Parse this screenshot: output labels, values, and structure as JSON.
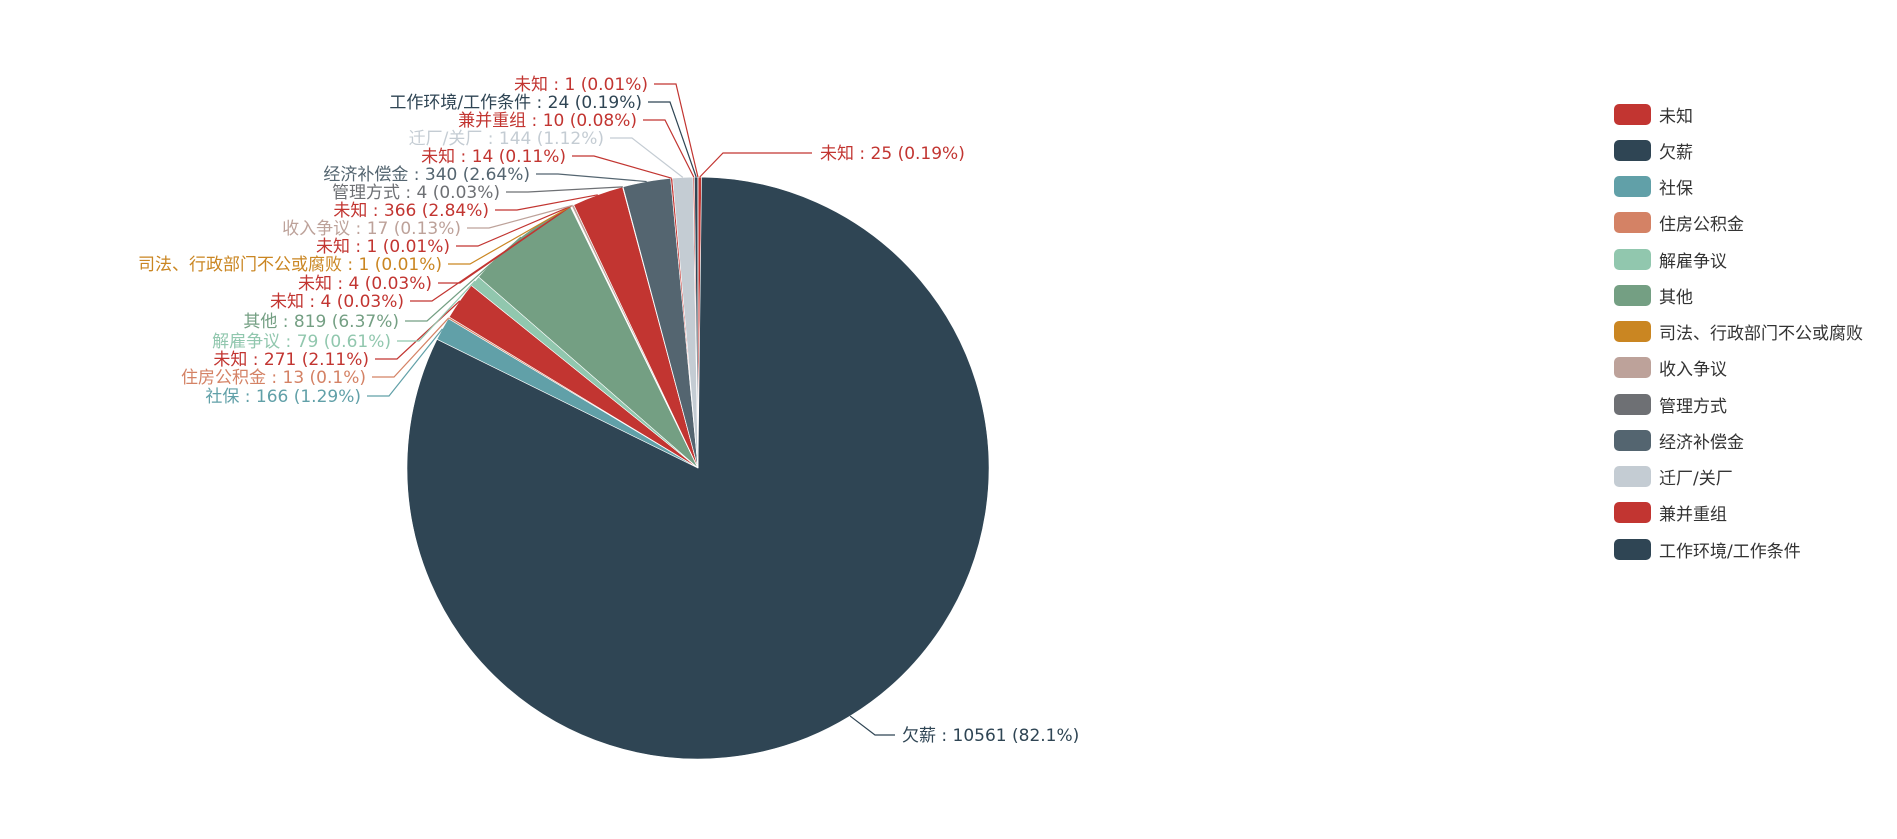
{
  "chart_data": {
    "type": "pie",
    "slices": [
      {
        "name": "未知",
        "value": 25,
        "percent": "0.19%",
        "color": "#c23531"
      },
      {
        "name": "欠薪",
        "value": 10561,
        "percent": "82.1%",
        "color": "#2f4554"
      },
      {
        "name": "社保",
        "value": 166,
        "percent": "1.29%",
        "color": "#61a0a8"
      },
      {
        "name": "住房公积金",
        "value": 13,
        "percent": "0.1%",
        "color": "#d48265"
      },
      {
        "name": "未知",
        "value": 271,
        "percent": "2.11%",
        "color": "#c23531"
      },
      {
        "name": "解雇争议",
        "value": 79,
        "percent": "0.61%",
        "color": "#91c7ae"
      },
      {
        "name": "其他",
        "value": 819,
        "percent": "6.37%",
        "color": "#749f83"
      },
      {
        "name": "未知",
        "value": 4,
        "percent": "0.03%",
        "color": "#c23531"
      },
      {
        "name": "未知",
        "value": 4,
        "percent": "0.03%",
        "color": "#c23531"
      },
      {
        "name": "司法、行政部门不公或腐败",
        "value": 1,
        "percent": "0.01%",
        "color": "#ca8622"
      },
      {
        "name": "未知",
        "value": 1,
        "percent": "0.01%",
        "color": "#c23531"
      },
      {
        "name": "收入争议",
        "value": 17,
        "percent": "0.13%",
        "color": "#bda29a"
      },
      {
        "name": "未知",
        "value": 366,
        "percent": "2.84%",
        "color": "#c23531"
      },
      {
        "name": "管理方式",
        "value": 4,
        "percent": "0.03%",
        "color": "#6e7074"
      },
      {
        "name": "经济补偿金",
        "value": 340,
        "percent": "2.64%",
        "color": "#546570"
      },
      {
        "name": "未知",
        "value": 14,
        "percent": "0.11%",
        "color": "#c23531"
      },
      {
        "name": "迁厂/关厂",
        "value": 144,
        "percent": "1.12%",
        "color": "#c4ccd3"
      },
      {
        "name": "兼并重组",
        "value": 10,
        "percent": "0.08%",
        "color": "#c23531"
      },
      {
        "name": "工作环境/工作条件",
        "value": 24,
        "percent": "0.19%",
        "color": "#2f4554"
      },
      {
        "name": "未知",
        "value": 1,
        "percent": "0.01%",
        "color": "#c23531"
      }
    ]
  },
  "legend": {
    "items": [
      {
        "label": "未知",
        "color": "#c23531"
      },
      {
        "label": "欠薪",
        "color": "#2f4554"
      },
      {
        "label": "社保",
        "color": "#61a0a8"
      },
      {
        "label": "住房公积金",
        "color": "#d48265"
      },
      {
        "label": "解雇争议",
        "color": "#91c7ae"
      },
      {
        "label": "其他",
        "color": "#749f83"
      },
      {
        "label": "司法、行政部门不公或腐败",
        "color": "#ca8622"
      },
      {
        "label": "收入争议",
        "color": "#bda29a"
      },
      {
        "label": "管理方式",
        "color": "#6e7074"
      },
      {
        "label": "经济补偿金",
        "color": "#546570"
      },
      {
        "label": "迁厂/关厂",
        "color": "#c4ccd3"
      },
      {
        "label": "兼并重组",
        "color": "#c23531"
      },
      {
        "label": "工作环境/工作条件",
        "color": "#2f4554"
      }
    ]
  }
}
